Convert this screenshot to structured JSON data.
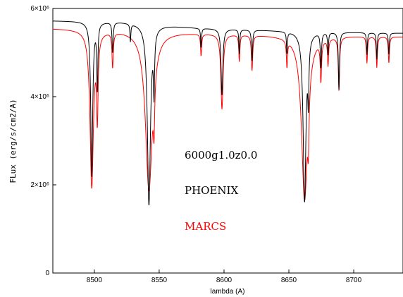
{
  "chart_data": {
    "type": "line",
    "xlabel": "lambda (A)",
    "ylabel": "FLux (erg/s/cm2/A)",
    "xlim": [
      8468,
      8738
    ],
    "ylim": [
      0,
      6000000
    ],
    "x_ticks": [
      8500,
      8550,
      8600,
      8650,
      8700
    ],
    "x_tick_labels": [
      "8500",
      "8550",
      "8600",
      "8650",
      "8700"
    ],
    "y_ticks": [
      0,
      2000000,
      4000000,
      6000000
    ],
    "y_tick_labels": [
      "0",
      "2×10⁶",
      "4×10⁶",
      "6×10⁶"
    ],
    "grid": false,
    "annotations": [
      {
        "text": "6000g1.0z0.0",
        "color": "#000000"
      },
      {
        "text": "PHOENIX",
        "color": "#000000"
      },
      {
        "text": "MARCS",
        "color": "#ff0000"
      }
    ],
    "series": [
      {
        "name": "PHOENIX",
        "color": "#000000",
        "continuum": [
          [
            8468,
            5720000
          ],
          [
            8520,
            5700000
          ],
          [
            8580,
            5560000
          ],
          [
            8640,
            5500000
          ],
          [
            8700,
            5460000
          ],
          [
            8738,
            5440000
          ]
        ],
        "lines": [
          {
            "center": 8498.0,
            "depth": 3500000,
            "width": 0.9
          },
          {
            "center": 8502.3,
            "depth": 1500000,
            "width": 0.5
          },
          {
            "center": 8514.1,
            "depth": 700000,
            "width": 0.5
          },
          {
            "center": 8527.8,
            "depth": 400000,
            "width": 0.4
          },
          {
            "center": 8542.1,
            "depth": 4100000,
            "width": 1.4
          },
          {
            "center": 8546.0,
            "depth": 1300000,
            "width": 0.5
          },
          {
            "center": 8582.3,
            "depth": 450000,
            "width": 0.4
          },
          {
            "center": 8598.4,
            "depth": 1500000,
            "width": 0.8
          },
          {
            "center": 8611.8,
            "depth": 550000,
            "width": 0.4
          },
          {
            "center": 8621.6,
            "depth": 700000,
            "width": 0.5
          },
          {
            "center": 8648.5,
            "depth": 500000,
            "width": 0.4
          },
          {
            "center": 8662.1,
            "depth": 3850000,
            "width": 1.3
          },
          {
            "center": 8665.0,
            "depth": 1200000,
            "width": 0.5
          },
          {
            "center": 8674.7,
            "depth": 800000,
            "width": 0.5
          },
          {
            "center": 8680.2,
            "depth": 500000,
            "width": 0.4
          },
          {
            "center": 8688.6,
            "depth": 1300000,
            "width": 0.5
          },
          {
            "center": 8710.2,
            "depth": 500000,
            "width": 0.4
          },
          {
            "center": 8717.8,
            "depth": 600000,
            "width": 0.4
          },
          {
            "center": 8727.1,
            "depth": 500000,
            "width": 0.4
          }
        ]
      },
      {
        "name": "MARCS",
        "color": "#ff0000",
        "continuum": [
          [
            8468,
            5550000
          ],
          [
            8520,
            5520000
          ],
          [
            8580,
            5450000
          ],
          [
            8640,
            5400000
          ],
          [
            8700,
            5380000
          ],
          [
            8738,
            5360000
          ]
        ],
        "lines": [
          {
            "center": 8498.0,
            "depth": 3550000,
            "width": 1.6
          },
          {
            "center": 8502.3,
            "depth": 1800000,
            "width": 0.7
          },
          {
            "center": 8514.1,
            "depth": 800000,
            "width": 0.6
          },
          {
            "center": 8542.1,
            "depth": 3600000,
            "width": 3.2
          },
          {
            "center": 8546.0,
            "depth": 1100000,
            "width": 0.6
          },
          {
            "center": 8582.3,
            "depth": 500000,
            "width": 0.5
          },
          {
            "center": 8598.4,
            "depth": 1700000,
            "width": 1.0
          },
          {
            "center": 8611.8,
            "depth": 600000,
            "width": 0.5
          },
          {
            "center": 8621.6,
            "depth": 800000,
            "width": 0.6
          },
          {
            "center": 8648.5,
            "depth": 600000,
            "width": 0.5
          },
          {
            "center": 8662.1,
            "depth": 3700000,
            "width": 2.8
          },
          {
            "center": 8665.0,
            "depth": 1100000,
            "width": 0.6
          },
          {
            "center": 8674.7,
            "depth": 900000,
            "width": 0.6
          },
          {
            "center": 8680.2,
            "depth": 600000,
            "width": 0.5
          },
          {
            "center": 8688.6,
            "depth": 1200000,
            "width": 0.6
          },
          {
            "center": 8710.2,
            "depth": 600000,
            "width": 0.5
          },
          {
            "center": 8717.8,
            "depth": 700000,
            "width": 0.5
          },
          {
            "center": 8727.1,
            "depth": 600000,
            "width": 0.5
          }
        ]
      }
    ]
  }
}
